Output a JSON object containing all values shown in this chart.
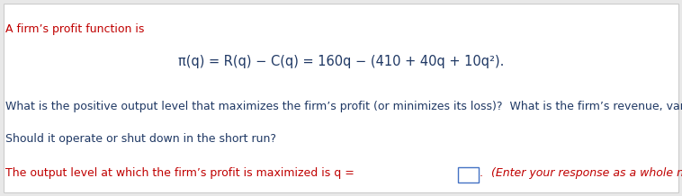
{
  "background_color": "#e8e8e8",
  "inner_bg_color": "#ffffff",
  "line1_text": "A firm’s profit function is",
  "line1_color": "#c00000",
  "line1_fontsize": 9.0,
  "equation_color": "#1f3864",
  "equation_fontsize": 10.5,
  "body_text1": "What is the positive output level that maximizes the firm’s profit (or minimizes its loss)?  What is the firm’s revenue, variable cost, and profit?",
  "body_text2": "Should it operate or shut down in the short run?",
  "body_color": "#1f3864",
  "body_fontsize": 9.0,
  "answer_prefix": "The output level at which the firm’s profit is maximized is q =",
  "answer_suffix": ".",
  "answer_italic": "  (Enter your response as a whole number.)",
  "answer_color": "#c00000",
  "answer_fontsize": 9.0,
  "box_color": "#4472c4"
}
